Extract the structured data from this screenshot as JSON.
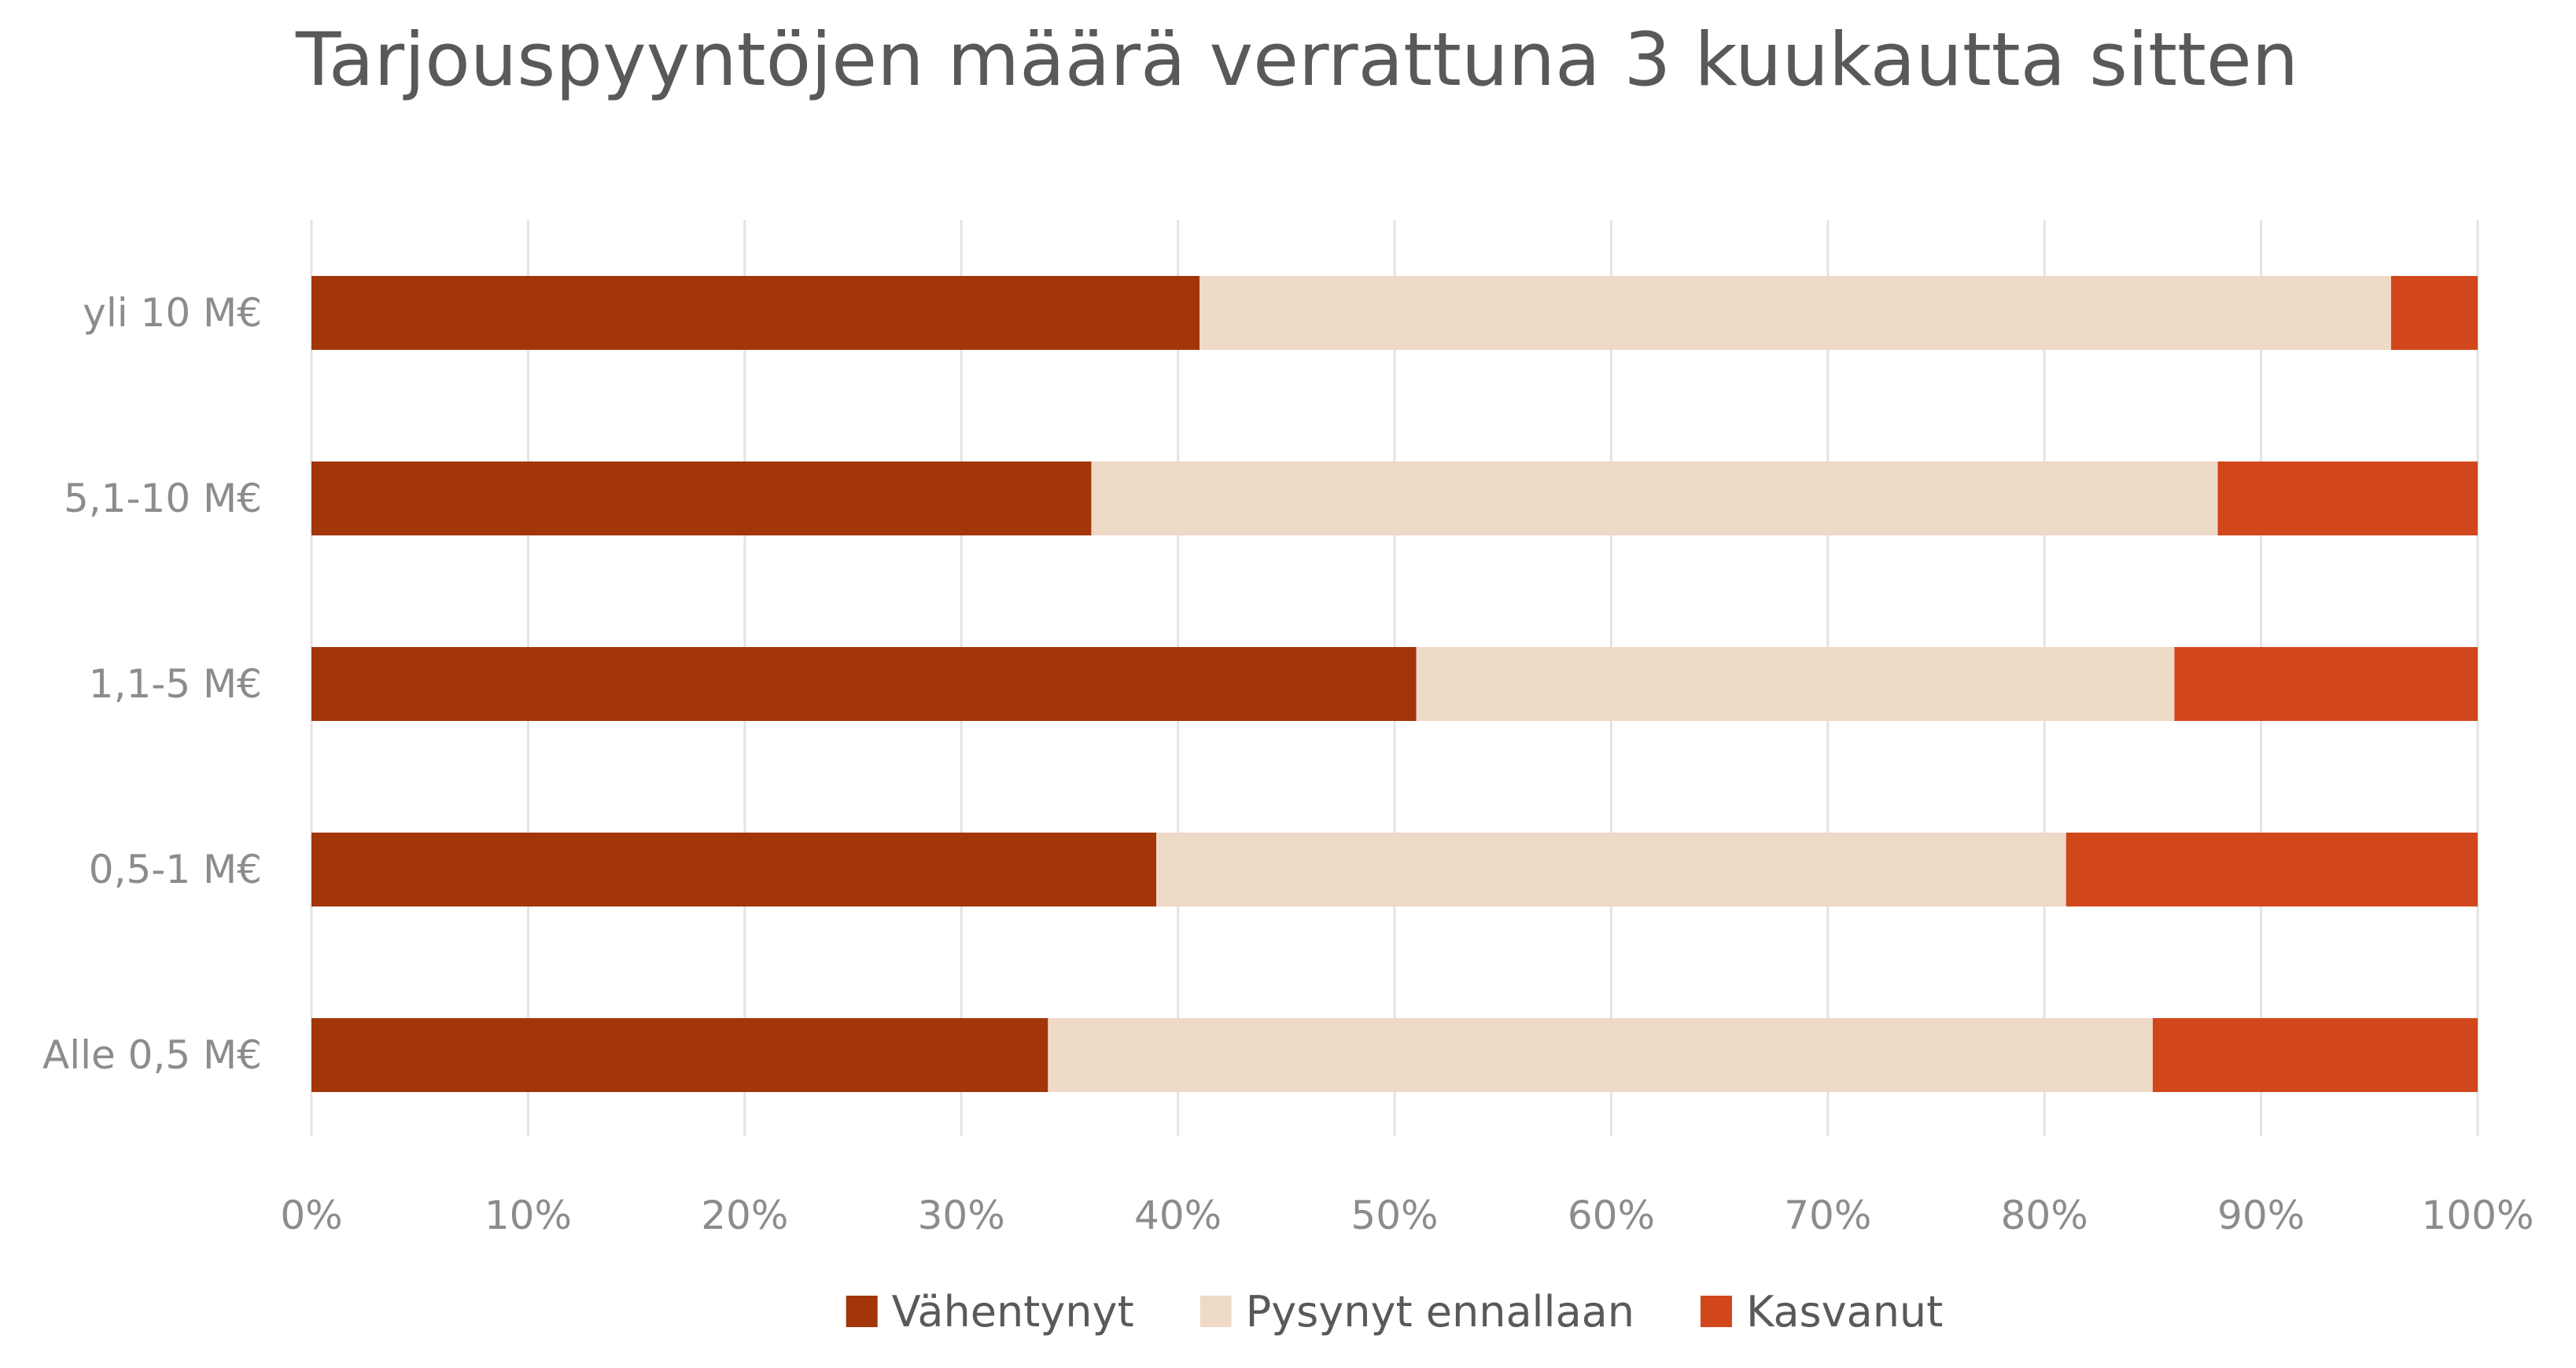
{
  "chart_data": {
    "type": "bar",
    "orientation": "horizontal",
    "stacked": "percent",
    "title": "Tarjouspyyntöjen määrä verrattuna 3 kuukautta sitten",
    "categories": [
      "yli 10 M€",
      "5,1-10 M€",
      "1,1-5 M€",
      "0,5-1 M€",
      "Alle 0,5 M€"
    ],
    "series": [
      {
        "name": "Vähentynyt",
        "color": "#a33609",
        "values": [
          41,
          36,
          51,
          39,
          34
        ]
      },
      {
        "name": "Pysynyt ennallaan",
        "color": "#efdac7",
        "values": [
          55,
          52,
          35,
          42,
          51
        ]
      },
      {
        "name": "Kasvanut",
        "color": "#d2461c",
        "values": [
          4,
          12,
          14,
          19,
          15
        ]
      }
    ],
    "x_ticks": [
      "0%",
      "10%",
      "20%",
      "30%",
      "40%",
      "50%",
      "60%",
      "70%",
      "80%",
      "90%",
      "100%"
    ],
    "xlim": [
      0,
      100
    ],
    "grid": "vertical",
    "legend": "bottom"
  }
}
